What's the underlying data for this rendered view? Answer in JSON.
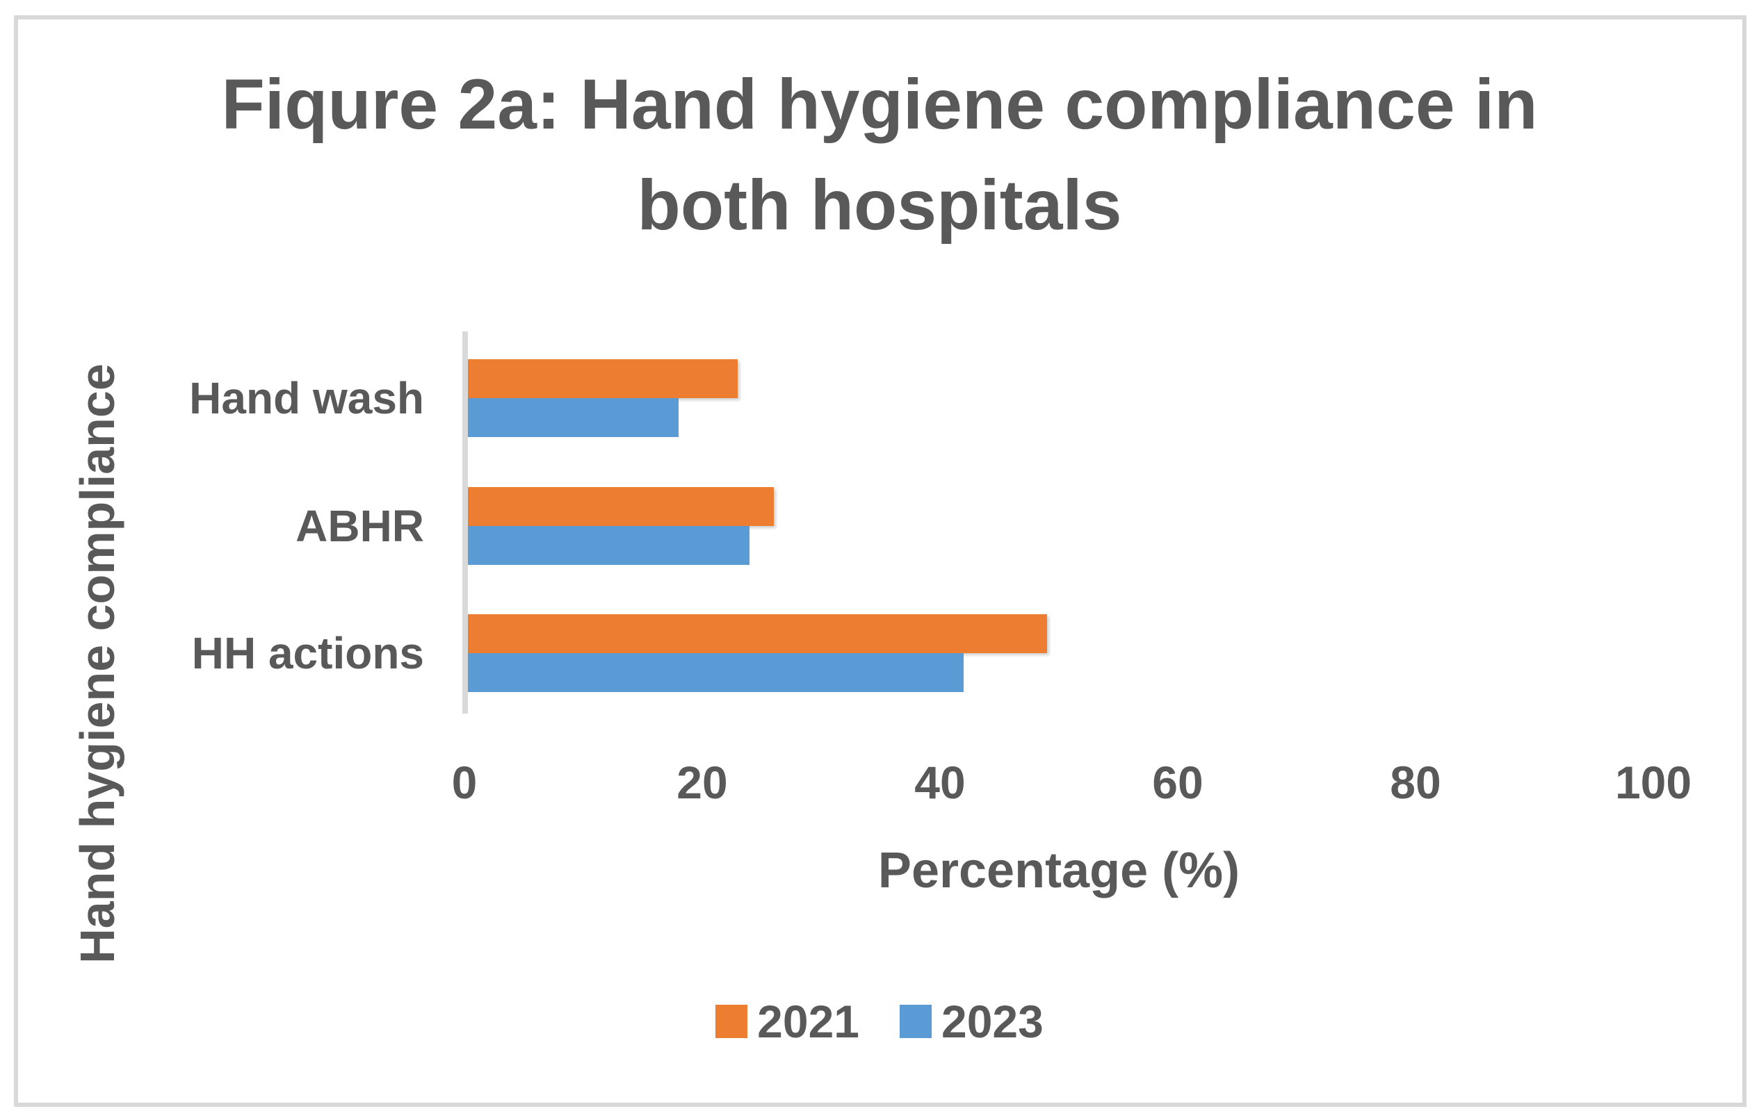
{
  "figure": {
    "title_lines": [
      "Fiqure 2a: Hand hygiene compliance in",
      "both hospitals"
    ]
  },
  "chart_data": {
    "type": "bar",
    "orientation": "horizontal",
    "title": "Fiqure 2a: Hand hygiene compliance in both hospitals",
    "categories": [
      "Hand wash",
      "ABHR",
      "HH actions"
    ],
    "series": [
      {
        "name": "2021",
        "color": "#ED7D31",
        "values": [
          23,
          26,
          49
        ]
      },
      {
        "name": "2023",
        "color": "#5B9BD5",
        "values": [
          18,
          24,
          42
        ]
      }
    ],
    "xlabel": "Percentage (%)",
    "ylabel": "Hand hygiene compliance",
    "xlim": [
      0,
      100
    ],
    "xticks": [
      0,
      20,
      40,
      60,
      80,
      100
    ],
    "grid": false,
    "legend_position": "bottom"
  },
  "colors": {
    "text": "#595959",
    "axis_line": "#D9D9D9",
    "frame_border": "#D8D8D8",
    "background": "#FFFFFF"
  }
}
